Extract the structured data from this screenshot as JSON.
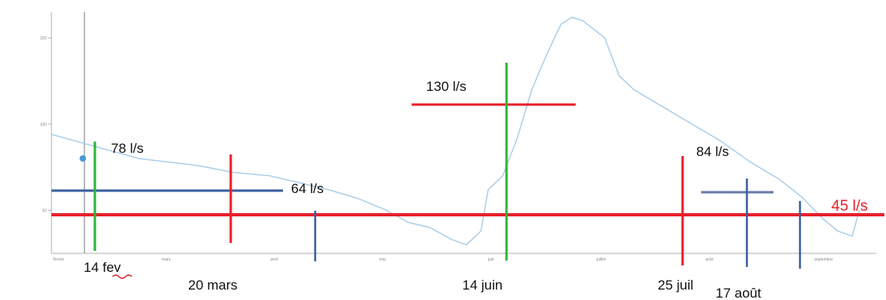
{
  "chart_data": {
    "type": "line",
    "xlabel": "",
    "ylabel": "",
    "x_tick_labels": [
      "février",
      "mars",
      "avril",
      "mai",
      "juin",
      "juillet",
      "août",
      "septembre"
    ],
    "y_ticks": [
      50,
      100,
      150
    ],
    "ylim": [
      25,
      165
    ],
    "series": [
      {
        "values": [
          [
            0,
            94
          ],
          [
            0.6,
            87
          ],
          [
            1.2,
            80
          ],
          [
            2,
            76
          ],
          [
            2.5,
            72
          ],
          [
            3,
            70
          ],
          [
            3.4,
            66
          ],
          [
            3.8,
            62
          ],
          [
            4.2,
            57
          ],
          [
            4.6,
            50
          ],
          [
            4.9,
            43
          ],
          [
            5.2,
            40
          ],
          [
            5.5,
            33
          ],
          [
            5.7,
            30
          ],
          [
            5.9,
            38
          ],
          [
            6.0,
            62
          ],
          [
            6.2,
            70
          ],
          [
            6.4,
            92
          ],
          [
            6.6,
            120
          ],
          [
            6.8,
            140
          ],
          [
            7.0,
            158
          ],
          [
            7.15,
            162
          ],
          [
            7.3,
            160
          ],
          [
            7.6,
            150
          ],
          [
            7.8,
            128
          ],
          [
            8.0,
            120
          ],
          [
            8.4,
            110
          ],
          [
            8.8,
            100
          ],
          [
            9.2,
            90
          ],
          [
            9.6,
            78
          ],
          [
            10.0,
            68
          ],
          [
            10.3,
            58
          ],
          [
            10.6,
            45
          ],
          [
            10.8,
            38
          ],
          [
            11.0,
            35
          ],
          [
            11.1,
            50
          ]
        ]
      }
    ],
    "annotations": [
      {
        "label": "78 l/s",
        "value": 78,
        "color": "#e8202a"
      },
      {
        "label": "64 l/s",
        "value": 64,
        "color": "#3a5fa0"
      },
      {
        "label": "130 l/s",
        "value": 130,
        "color": "#e8202a"
      },
      {
        "label": "84 l/s",
        "value": 84,
        "color": "#e8202a"
      },
      {
        "label": "45 l/s",
        "value": 45,
        "color": "#e8202a"
      }
    ],
    "date_labels": [
      "14 fev",
      "20 mars",
      "14 juin",
      "25 juil",
      "17 août"
    ],
    "colors": {
      "series": "#a9cbe8",
      "red": "#e8202a",
      "green": "#2db53a",
      "blue": "#3a5fa0"
    }
  }
}
